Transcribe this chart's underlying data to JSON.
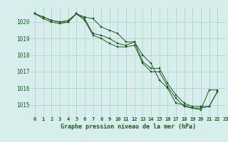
{
  "x": [
    0,
    1,
    2,
    3,
    4,
    5,
    6,
    7,
    8,
    9,
    10,
    11,
    12,
    13,
    14,
    15,
    16,
    17,
    18,
    19,
    20,
    21,
    22,
    23
  ],
  "line1": [
    1020.5,
    1020.3,
    1020.1,
    1020.0,
    1020.1,
    1020.5,
    1020.3,
    1020.2,
    1019.7,
    1019.5,
    1019.3,
    1018.8,
    1018.8,
    1018.0,
    1017.5,
    1016.5,
    1016.0,
    1015.1,
    1015.0,
    1014.8,
    1014.7,
    1015.9,
    1015.9,
    null
  ],
  "line2": [
    1020.5,
    1020.3,
    1020.1,
    1020.0,
    1020.0,
    1020.5,
    1020.2,
    1019.3,
    1019.2,
    1019.0,
    1018.7,
    1018.6,
    1018.8,
    1017.6,
    1017.2,
    1017.2,
    1016.3,
    1015.6,
    1015.1,
    1014.9,
    1014.9,
    1014.9,
    1015.8,
    null
  ],
  "line3": [
    1020.5,
    1020.2,
    1020.0,
    1019.9,
    1020.0,
    1020.5,
    1020.1,
    1019.2,
    1019.0,
    1018.7,
    1018.5,
    1018.5,
    1018.6,
    1017.5,
    1017.0,
    1017.0,
    1016.1,
    1015.4,
    1014.9,
    1014.8,
    1014.8,
    1014.9,
    1015.8,
    null
  ],
  "bg_color": "#d8eeed",
  "line_color": "#1a5c1a",
  "grid_color": "#aacccc",
  "ylabel_ticks": [
    1015,
    1016,
    1017,
    1018,
    1019,
    1020
  ],
  "xlabel_ticks": [
    0,
    1,
    2,
    3,
    4,
    5,
    6,
    7,
    8,
    9,
    10,
    11,
    12,
    13,
    14,
    15,
    16,
    17,
    18,
    19,
    20,
    21,
    22,
    23
  ],
  "xlabel_label": "Graphe pression niveau de la mer (hPa)",
  "ylim": [
    1014.3,
    1020.9
  ],
  "xlim": [
    -0.5,
    23.0
  ]
}
